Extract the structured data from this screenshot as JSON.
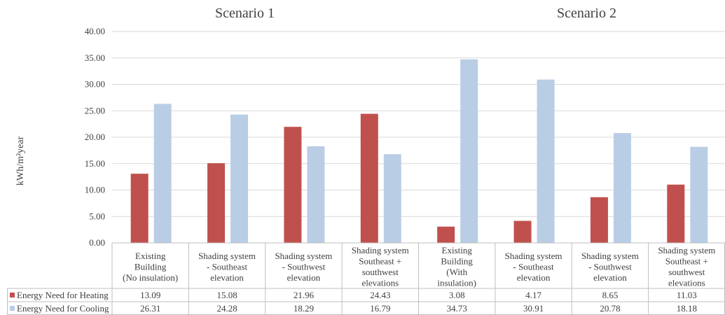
{
  "scenarios": [
    "Scenario 1",
    "Scenario 2"
  ],
  "chart_data": {
    "type": "bar",
    "ylabel": "kWh/m²year",
    "xlabel": "",
    "ylim": [
      0,
      40
    ],
    "yticks": [
      "0.00",
      "5.00",
      "10.00",
      "15.00",
      "20.00",
      "25.00",
      "30.00",
      "35.00",
      "40.00"
    ],
    "grid": true,
    "legend": "table-left",
    "categories": [
      [
        "Existing",
        "Building",
        "(No insulation)"
      ],
      [
        "Shading system",
        "- Southeast",
        "elevation"
      ],
      [
        "Shading system",
        "- Southwest",
        "elevation"
      ],
      [
        "Shading system",
        "Southeast +",
        "southwest",
        "elevations"
      ],
      [
        "Existing",
        "Building",
        "(With",
        "insulation)"
      ],
      [
        "Shading system",
        "- Southeast",
        "elevation"
      ],
      [
        "Shading system",
        "- Southwest",
        "elevation"
      ],
      [
        "Shading system",
        "Southeast +",
        "southwest",
        "elevations"
      ]
    ],
    "series": [
      {
        "name": "Energy Need for Heating",
        "color": "#c0504d",
        "values": [
          13.09,
          15.08,
          21.96,
          24.43,
          3.08,
          4.17,
          8.65,
          11.03
        ],
        "labels": [
          "13.09",
          "15.08",
          "21.96",
          "24.43",
          "3.08",
          "4.17",
          "8.65",
          "11.03"
        ]
      },
      {
        "name": "Energy Need for Cooling",
        "color": "#b9cde5",
        "values": [
          26.31,
          24.28,
          18.29,
          16.79,
          34.73,
          30.91,
          20.78,
          18.18
        ],
        "labels": [
          "26.31",
          "24.28",
          "18.29",
          "16.79",
          "34.73",
          "30.91",
          "20.78",
          "18.18"
        ]
      }
    ]
  }
}
